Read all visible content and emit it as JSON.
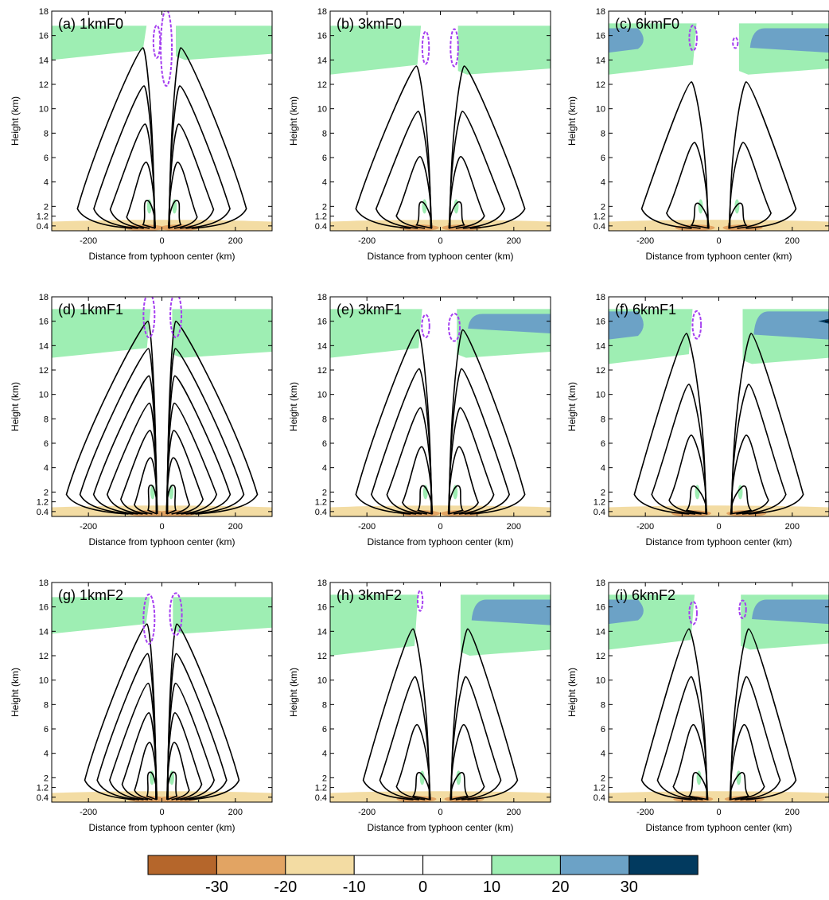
{
  "chart_data": {
    "type": "contour",
    "x_axis": {
      "label": "Distance from typhoon center (km)",
      "range": [
        -300,
        300
      ],
      "ticks": [
        -200,
        0,
        200
      ]
    },
    "y_axis": {
      "label": "Height (km)",
      "range": [
        0,
        18
      ],
      "ticks": [
        0.4,
        1.2,
        2,
        4,
        6,
        8,
        10,
        12,
        14,
        16,
        18
      ],
      "tick_labels": [
        "0.4",
        "1.2",
        "2",
        "4",
        "6",
        "8",
        "10",
        "12",
        "14",
        "16",
        "18"
      ]
    },
    "panels": [
      {
        "id": "a",
        "title": "(a) 1kmF0",
        "rmw": 38,
        "top": 15.0,
        "width": 230,
        "n": 5,
        "green": [
          [
            14.0,
            16.8
          ]
        ],
        "blue": [],
        "purple": [
          [
            -14,
            15.5,
            4,
            1.2
          ],
          [
            12,
            15.0,
            9,
            3.0
          ]
        ],
        "dark": []
      },
      {
        "id": "b",
        "title": "(b) 3kmF0",
        "rmw": 48,
        "top": 13.5,
        "width": 230,
        "n": 4,
        "green": [
          [
            12.8,
            16.8
          ]
        ],
        "blue": [],
        "purple": [
          [
            -40,
            15.0,
            4,
            1.2
          ],
          [
            38,
            15.0,
            5,
            1.4
          ]
        ],
        "dark": []
      },
      {
        "id": "c",
        "title": "(c) 6kmF0",
        "rmw": 55,
        "top": 12.2,
        "width": 210,
        "n": 3,
        "green": [
          [
            12.8,
            17.0
          ]
        ],
        "blue": [
          [
            14.6,
            16.6
          ]
        ],
        "purple": [
          [
            -70,
            15.8,
            5,
            0.9
          ],
          [
            45,
            15.4,
            2,
            0.3
          ]
        ],
        "dark": []
      },
      {
        "id": "d",
        "title": "(d) 1kmF1",
        "rmw": 28,
        "top": 16.0,
        "width": 260,
        "n": 7,
        "green": [
          [
            13.0,
            17.0
          ]
        ],
        "blue": [],
        "purple": [
          [
            -35,
            16.5,
            9,
            1.7
          ],
          [
            38,
            16.5,
            9,
            1.7
          ]
        ],
        "dark": []
      },
      {
        "id": "e",
        "title": "(e) 3kmF1",
        "rmw": 45,
        "top": 15.3,
        "width": 230,
        "n": 5,
        "green": [
          [
            13.0,
            17.0
          ]
        ],
        "blue": [
          [
            15.0,
            16.6
          ]
        ],
        "purple": [
          [
            -40,
            15.6,
            5,
            0.8
          ],
          [
            38,
            15.5,
            9,
            1.0
          ]
        ],
        "dark": []
      },
      {
        "id": "f",
        "title": "(f) 6kmF1",
        "rmw": 65,
        "top": 15.0,
        "width": 230,
        "n": 4,
        "green": [
          [
            12.5,
            17.0
          ]
        ],
        "blue": [
          [
            14.5,
            16.8
          ]
        ],
        "purple": [
          [
            -60,
            15.7,
            6,
            1.0
          ]
        ],
        "dark": [
          [
            15.8,
            16.2
          ]
        ]
      },
      {
        "id": "g",
        "title": "(g) 1kmF2",
        "rmw": 30,
        "top": 14.6,
        "width": 210,
        "n": 6,
        "green": [
          [
            13.8,
            16.8
          ]
        ],
        "blue": [],
        "purple": [
          [
            -35,
            15.0,
            9,
            1.9
          ],
          [
            38,
            15.4,
            10,
            1.6
          ]
        ],
        "dark": []
      },
      {
        "id": "h",
        "title": "(h) 3kmF2",
        "rmw": 55,
        "top": 14.2,
        "width": 210,
        "n": 4,
        "green": [
          [
            12.0,
            17.0
          ]
        ],
        "blue": [
          [
            14.5,
            16.6
          ]
        ],
        "purple": [
          [
            -55,
            16.5,
            2,
            0.7
          ]
        ],
        "dark": []
      },
      {
        "id": "i",
        "title": "(i) 6kmF2",
        "rmw": 60,
        "top": 14.2,
        "width": 210,
        "n": 4,
        "green": [
          [
            12.5,
            17.0
          ]
        ],
        "blue": [
          [
            14.6,
            16.6
          ]
        ],
        "purple": [
          [
            -70,
            15.5,
            5,
            0.8
          ],
          [
            65,
            15.8,
            4,
            0.6
          ]
        ],
        "dark": []
      }
    ],
    "colorbar": {
      "labels": [
        "-30",
        "-20",
        "-10",
        "0",
        "10",
        "20",
        "30"
      ],
      "colors": [
        "#b5662b",
        "#e2a463",
        "#f3dca3",
        "#ffffff",
        "#ffffff",
        "#9eeeb3",
        "#6ca2c6",
        "#023a5f"
      ]
    }
  }
}
